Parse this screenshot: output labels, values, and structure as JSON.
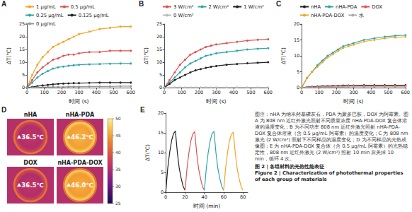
{
  "chart_data": [
    {
      "panel": "A",
      "type": "line",
      "x_label": "时间 (s)",
      "y_label": "ΔT(℃)",
      "x": [
        0,
        30,
        60,
        90,
        120,
        150,
        180,
        210,
        240,
        270,
        300,
        360,
        420,
        480,
        540,
        600
      ],
      "xlim": [
        0,
        600
      ],
      "xticks": [
        0,
        100,
        200,
        300,
        400,
        500,
        600
      ],
      "ylim": [
        0,
        25
      ],
      "yticks": [
        0,
        5,
        10,
        15,
        20,
        25
      ],
      "grid": false,
      "legend": "top",
      "marker": "circle",
      "series": [
        {
          "name": "1 μg/mL",
          "color": "#f4a526",
          "values": [
            0,
            5,
            9,
            12,
            14,
            16,
            17,
            18,
            19,
            20,
            21,
            22,
            23,
            23.5,
            24,
            24
          ]
        },
        {
          "name": "0.5 μg/mL",
          "color": "#e0524f",
          "values": [
            0,
            3,
            6,
            8,
            9.5,
            11,
            11.5,
            12.5,
            13,
            13,
            13.5,
            14,
            14,
            14.5,
            14.5,
            14.5
          ]
        },
        {
          "name": "0.25 μg/mL",
          "color": "#2ea6a6",
          "values": [
            0,
            2,
            4,
            5.5,
            6.5,
            7.5,
            8,
            8.3,
            8.6,
            8.8,
            9,
            9.2,
            9.3,
            9.4,
            9.5,
            9.5
          ]
        },
        {
          "name": "0.125 μg/mL",
          "color": "#222222",
          "values": [
            0,
            0.3,
            0.6,
            0.9,
            1.1,
            1.3,
            1.5,
            1.6,
            1.7,
            1.8,
            1.8,
            1.9,
            2,
            2,
            2,
            2
          ]
        },
        {
          "name": "0 μg/mL",
          "color": "#999999",
          "values": [
            0,
            0.1,
            0.1,
            0.2,
            0.2,
            0.3,
            0.3,
            0.3,
            0.4,
            0.4,
            0.4,
            0.5,
            0.5,
            0.5,
            0.6,
            0.6
          ]
        }
      ]
    },
    {
      "panel": "B",
      "type": "line",
      "x_label": "时间 (s)",
      "y_label": "ΔT(℃)",
      "x": [
        0,
        30,
        60,
        90,
        120,
        150,
        180,
        210,
        240,
        270,
        300,
        360,
        420,
        480,
        540,
        600
      ],
      "xlim": [
        0,
        600
      ],
      "xticks": [
        0,
        100,
        200,
        300,
        400,
        500,
        600
      ],
      "ylim": [
        0,
        25
      ],
      "yticks": [
        0,
        5,
        10,
        15,
        20,
        25
      ],
      "grid": false,
      "legend": "top",
      "marker": "circle",
      "series": [
        {
          "name": "3 W/cm²",
          "color": "#e0524f",
          "values": [
            0,
            3,
            6,
            9,
            11,
            13,
            14,
            15,
            16,
            16.5,
            17,
            17.5,
            18,
            18.5,
            18.8,
            19
          ]
        },
        {
          "name": "2 W/cm²",
          "color": "#2ea6a6",
          "values": [
            0,
            2,
            4,
            6,
            8,
            9.5,
            10.5,
            11.5,
            12.5,
            13,
            13.5,
            14,
            14.5,
            15,
            15.3,
            15.5
          ]
        },
        {
          "name": "1 W/cm²",
          "color": "#222222",
          "values": [
            0,
            1.5,
            3,
            4,
            5,
            6,
            6.8,
            7.3,
            7.8,
            8.2,
            8.5,
            9,
            9.3,
            9.6,
            9.8,
            10
          ]
        },
        {
          "name": "0 W/cm²",
          "color": "#bbbbbb",
          "values": [
            0,
            0,
            0.1,
            0.1,
            0.1,
            0.1,
            0.1,
            0.1,
            0.1,
            0.1,
            0.1,
            0.1,
            0.1,
            0.1,
            0.1,
            0.1
          ]
        }
      ]
    },
    {
      "panel": "C",
      "type": "line",
      "x_label": "时间 (s)",
      "y_label": "ΔT(℃)",
      "x": [
        0,
        30,
        60,
        90,
        120,
        150,
        180,
        210,
        240,
        270,
        300,
        360,
        420,
        480,
        540,
        600
      ],
      "xlim": [
        0,
        600
      ],
      "xticks": [
        0,
        100,
        200,
        300,
        400,
        500,
        600
      ],
      "ylim": [
        0,
        20
      ],
      "yticks": [
        0,
        5,
        10,
        15,
        20
      ],
      "grid": false,
      "legend": "top",
      "marker": "circle",
      "series": [
        {
          "name": "nHA",
          "color": "#222222",
          "values": [
            0,
            0.2,
            0.3,
            0.4,
            0.5,
            0.5,
            0.6,
            0.6,
            0.7,
            0.7,
            0.7,
            0.8,
            0.8,
            0.8,
            0.8,
            0.8
          ]
        },
        {
          "name": "nHA-PDA",
          "color": "#2ea6a6",
          "values": [
            0,
            3,
            5,
            7,
            8.5,
            10,
            11,
            12,
            13,
            13.5,
            14,
            15,
            15.5,
            16,
            16.3,
            16.5
          ]
        },
        {
          "name": "DOX",
          "color": "#e0524f",
          "values": [
            0,
            0.1,
            0.2,
            0.3,
            0.4,
            0.4,
            0.5,
            0.5,
            0.5,
            0.6,
            0.6,
            0.6,
            0.6,
            0.6,
            0.6,
            0.6
          ]
        },
        {
          "name": "nHA-PDA-DOX",
          "color": "#f4a526",
          "values": [
            0,
            3,
            5,
            6.5,
            8,
            9.5,
            10.5,
            11.5,
            12.5,
            13,
            13.5,
            14.5,
            15,
            15.5,
            15.8,
            16
          ]
        },
        {
          "name": "水",
          "color": "#aaaaaa",
          "values": [
            0,
            0.1,
            0.1,
            0.1,
            0.2,
            0.2,
            0.2,
            0.2,
            0.2,
            0.3,
            0.3,
            0.3,
            0.3,
            0.3,
            0.3,
            0.3
          ]
        }
      ]
    },
    {
      "panel": "E",
      "type": "line",
      "x_label": "时间 (min)",
      "y_label": "ΔT(℃)",
      "xlim": [
        0,
        85
      ],
      "xticks": [
        0,
        20,
        40,
        60,
        80
      ],
      "ylim": [
        0,
        20
      ],
      "yticks": [
        0,
        5,
        10,
        15,
        20
      ],
      "grid": false,
      "marker": "none",
      "series": [
        {
          "color": "#222222",
          "x": [
            0,
            2,
            4,
            6,
            8,
            10,
            12,
            14,
            16,
            18,
            20
          ],
          "values": [
            0,
            6,
            10,
            13,
            14.8,
            15.5,
            10,
            6,
            3.5,
            1.5,
            0.5
          ]
        },
        {
          "color": "#e0524f",
          "x": [
            20,
            22,
            24,
            26,
            28,
            30,
            32,
            34,
            36,
            38,
            40
          ],
          "values": [
            0.5,
            6,
            10,
            13,
            14.7,
            15.3,
            10,
            6,
            3.5,
            1.5,
            0.5
          ]
        },
        {
          "color": "#2ea6a6",
          "x": [
            40,
            42,
            44,
            46,
            48,
            50,
            52,
            54,
            56,
            58,
            60
          ],
          "values": [
            0.5,
            6,
            10,
            13,
            14.8,
            15.4,
            10,
            6,
            3.5,
            1.5,
            0.5
          ]
        },
        {
          "color": "#f4a526",
          "x": [
            60,
            62,
            64,
            66,
            68,
            70,
            72,
            74,
            76,
            78,
            80
          ],
          "values": [
            0.5,
            6,
            10,
            13,
            14.6,
            15.2,
            10,
            6,
            3.5,
            1.5,
            0.5
          ]
        }
      ]
    }
  ],
  "thermal_images": {
    "panel": "D",
    "images": [
      {
        "label": "nHA",
        "temperature": {
          "value": 36.5,
          "label": "36.5℃"
        }
      },
      {
        "label": "nHA-PDA",
        "temperature": {
          "value": 46.2,
          "label": "46.2℃"
        }
      },
      {
        "label": "DOX",
        "temperature": {
          "value": 36.5,
          "label": "36.5℃"
        }
      },
      {
        "label": "nHA-PDA-DOX",
        "temperature": {
          "value": 46.0,
          "label": "46.0℃"
        }
      }
    ],
    "colorbar": {
      "range": [
        25,
        50
      ],
      "ticks": [
        25,
        30,
        35,
        40,
        45,
        50
      ]
    }
  },
  "caption": {
    "note": "图注：nHA 为纳米羟基磷灰石，PDA 为聚多巴胺，DOX 为阿霉素。图 A 为 808 nm 近红外激光照射不同质量浓度 nHA-PDA-DOX 复合体溶液的温度变化；B 为不同功率 808 nm 近红外激光照射 nHA-PDA-DOX 复合体溶液（含 0.5 μg/mL 阿霉素）的温度变化；C 为 808 nm 激光 (2 W/cm²) 照射下不同样品的温度变化；D 为不同样品的光热成像图；E 为 nHA-PDA-DOX 复合体（含 0.5 μg/mL 阿霉素）的光热稳定性，808 nm 近红外激光 (2 W/cm²) 照射 10 min 后关掉 10 min，循环 4 次。",
    "title_cn": "图 2 | 各组材料的光热性能表征",
    "title_en": "Figure 2 | Characterization of photothermal properties of each group of materials"
  }
}
